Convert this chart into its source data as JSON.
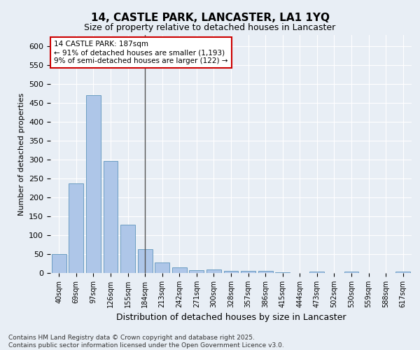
{
  "title": "14, CASTLE PARK, LANCASTER, LA1 1YQ",
  "subtitle": "Size of property relative to detached houses in Lancaster",
  "xlabel": "Distribution of detached houses by size in Lancaster",
  "ylabel": "Number of detached properties",
  "categories": [
    "40sqm",
    "69sqm",
    "97sqm",
    "126sqm",
    "155sqm",
    "184sqm",
    "213sqm",
    "242sqm",
    "271sqm",
    "300sqm",
    "328sqm",
    "357sqm",
    "386sqm",
    "415sqm",
    "444sqm",
    "473sqm",
    "502sqm",
    "530sqm",
    "559sqm",
    "588sqm",
    "617sqm"
  ],
  "values": [
    50,
    238,
    470,
    297,
    128,
    63,
    27,
    14,
    8,
    10,
    6,
    6,
    5,
    1,
    0,
    4,
    0,
    4,
    0,
    0,
    3
  ],
  "bar_color": "#aec6e8",
  "bar_edge_color": "#6b9dc2",
  "highlight_index": 5,
  "highlight_line_color": "#555555",
  "ylim": [
    0,
    630
  ],
  "yticks": [
    0,
    50,
    100,
    150,
    200,
    250,
    300,
    350,
    400,
    450,
    500,
    550,
    600
  ],
  "annotation_text": "14 CASTLE PARK: 187sqm\n← 91% of detached houses are smaller (1,193)\n9% of semi-detached houses are larger (122) →",
  "annotation_box_color": "#ffffff",
  "annotation_box_edge": "#cc0000",
  "bg_color": "#e8eef5",
  "plot_bg_color": "#e8eef5",
  "footer1": "Contains HM Land Registry data © Crown copyright and database right 2025.",
  "footer2": "Contains public sector information licensed under the Open Government Licence v3.0."
}
